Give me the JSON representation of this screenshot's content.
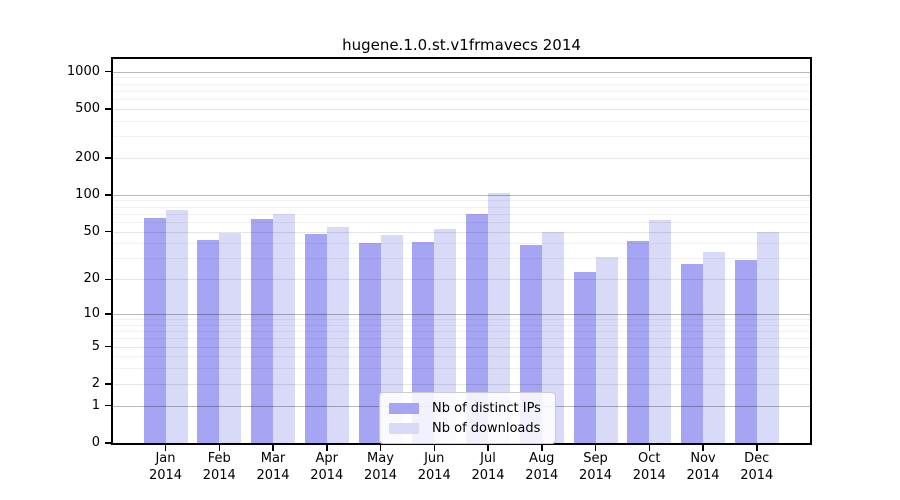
{
  "chart_data": {
    "type": "bar",
    "title": "hugene.1.0.st.v1frmavecs 2014",
    "categories": [
      "Jan",
      "Feb",
      "Mar",
      "Apr",
      "May",
      "Jun",
      "Jul",
      "Aug",
      "Sep",
      "Oct",
      "Nov",
      "Dec"
    ],
    "x_axis": {
      "year_label": "2014"
    },
    "series": [
      {
        "name": "Nb of distinct IPs",
        "color": "#a5a5f4",
        "values": [
          65,
          43,
          64,
          48,
          40,
          41,
          70,
          39,
          23,
          42,
          27,
          29
        ]
      },
      {
        "name": "Nb of downloads",
        "color": "#d9d9f8",
        "values": [
          75,
          49,
          70,
          55,
          47,
          53,
          104,
          50,
          31,
          62,
          34,
          50
        ]
      }
    ],
    "y_axis": {
      "ticks": [
        0,
        1,
        2,
        5,
        10,
        20,
        50,
        100,
        200,
        500,
        1000
      ],
      "minor_ticks": [
        3,
        4,
        6,
        7,
        8,
        9,
        30,
        40,
        60,
        70,
        80,
        90,
        300,
        400,
        600,
        700,
        800,
        900
      ],
      "scale": "log10(value+1)",
      "range": [
        0,
        1260
      ]
    },
    "grid": "horizontal",
    "legend_position": "lower-center"
  }
}
